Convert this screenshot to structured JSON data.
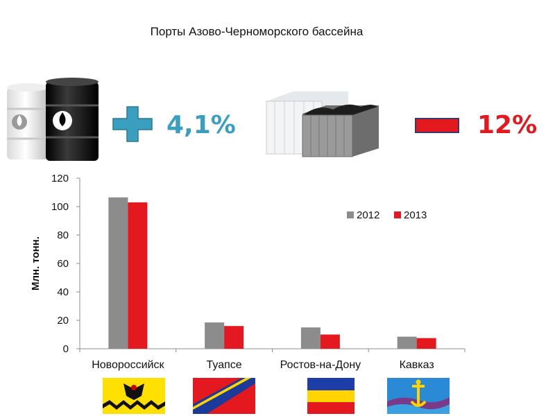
{
  "title": "Порты Азово-Черноморского бассейна",
  "oil": {
    "sign": "plus",
    "change": "4,1%",
    "color": "#3a9fbf",
    "icon": "oil-barrels"
  },
  "coal": {
    "sign": "minus",
    "change": "12%",
    "color": "#e3191f",
    "icon": "coal-containers"
  },
  "chart_data": {
    "type": "bar",
    "categories": [
      "Новороссийск",
      "Туапсе",
      "Ростов-на-Дону",
      "Кавказ"
    ],
    "series": [
      {
        "name": "2012",
        "values": [
          106.5,
          18.5,
          15,
          8.5
        ],
        "color": "#8c8c8c"
      },
      {
        "name": "2013",
        "values": [
          103,
          16,
          10,
          7.5
        ],
        "color": "#e3191f"
      }
    ],
    "ylabel": "Млн. тонн.",
    "ylim": [
      0,
      120
    ],
    "yticks": [
      0,
      20,
      40,
      60,
      80,
      100,
      120
    ],
    "grid": false,
    "legend": "top-right"
  },
  "flags": [
    "novorossiysk-coat",
    "tuapse-flag",
    "rostov-flag",
    "kavkaz-flag"
  ]
}
